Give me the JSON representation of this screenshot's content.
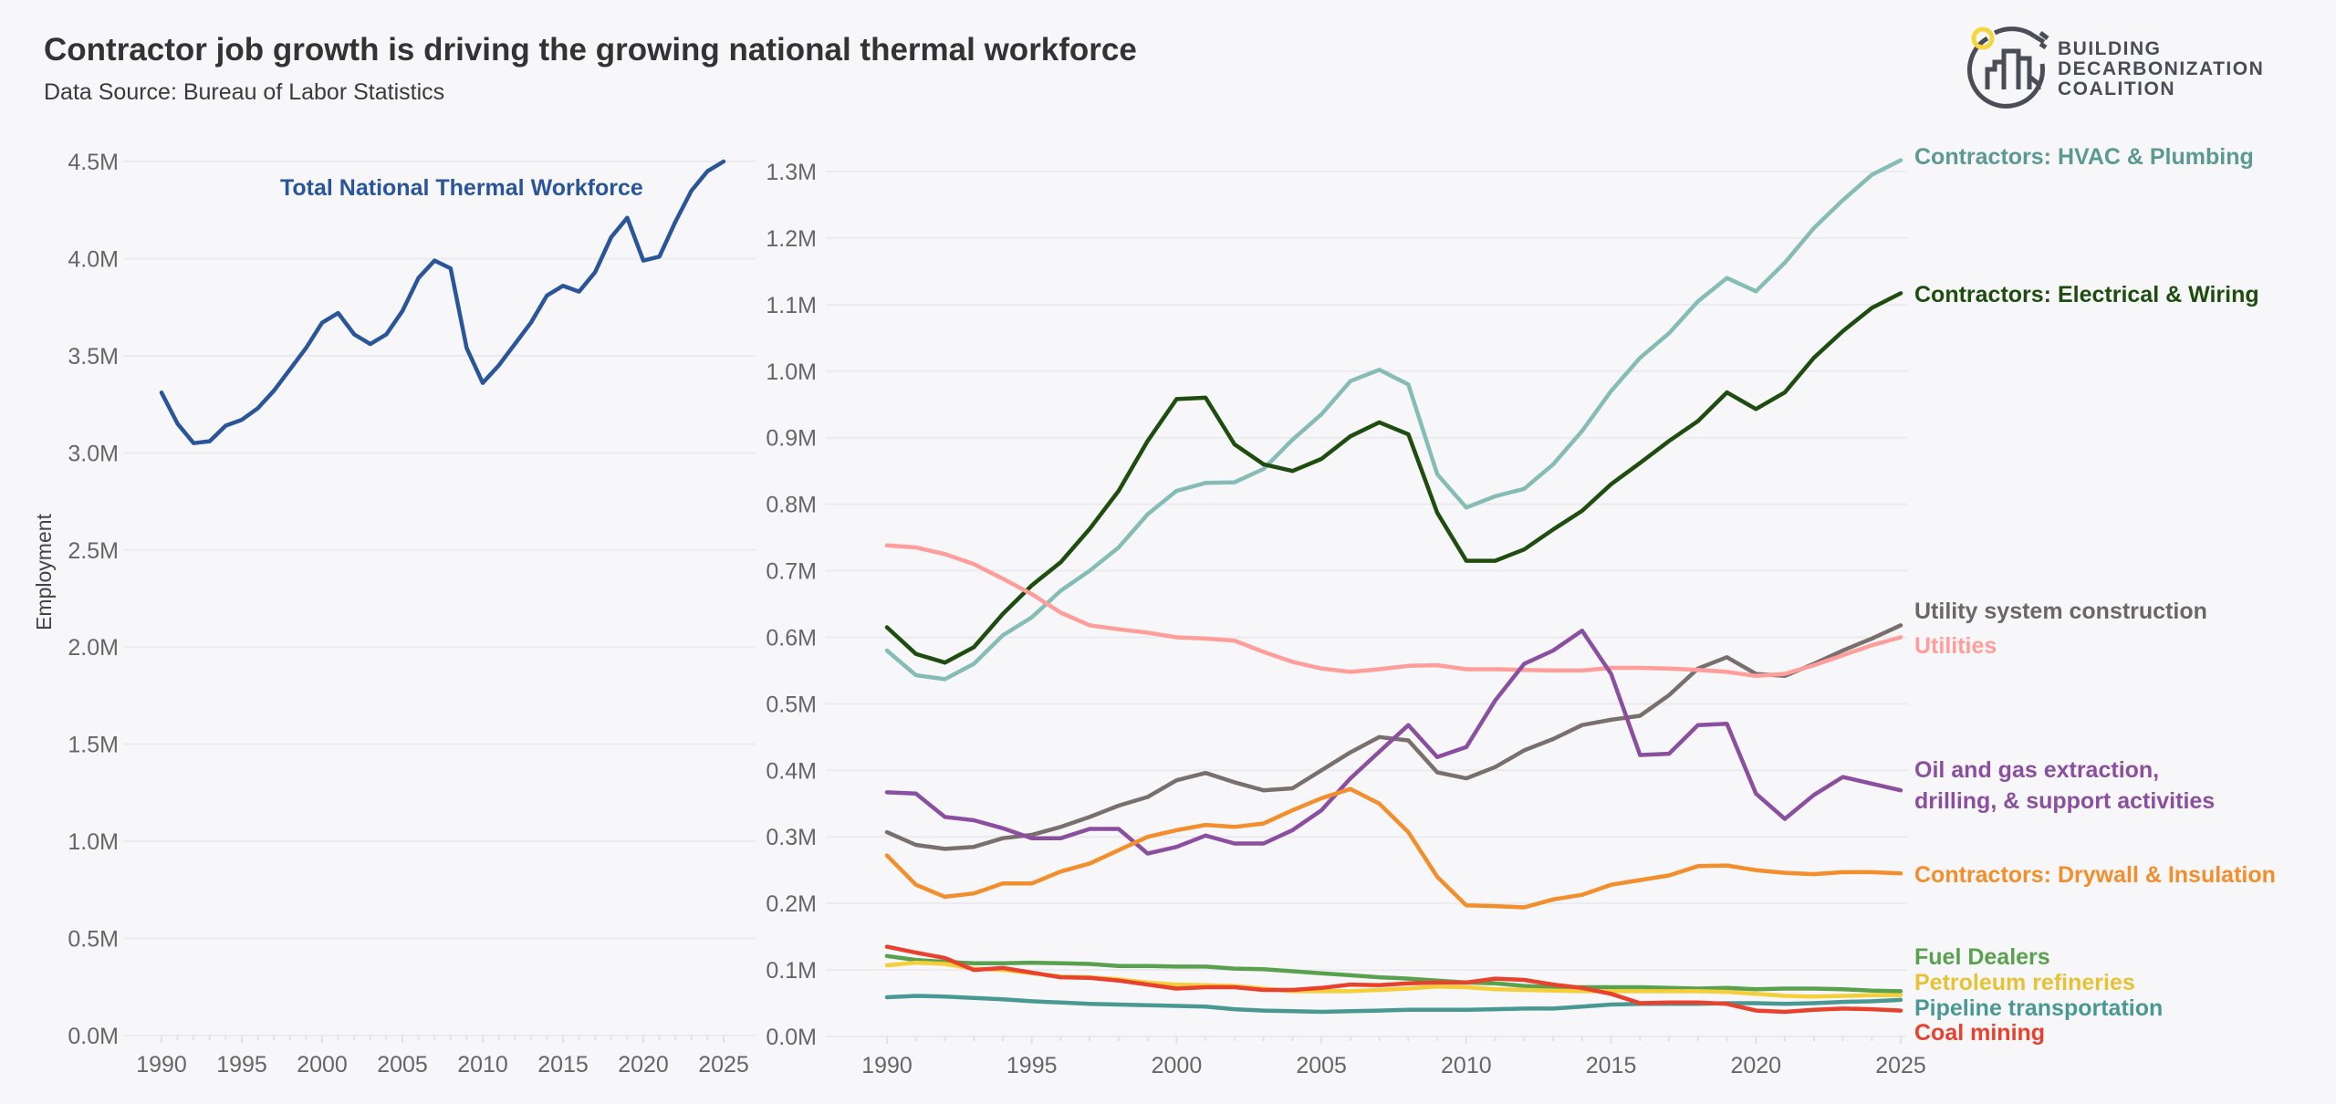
{
  "header": {
    "title": "Contractor job growth is driving the growing national thermal workforce",
    "subtitle": "Data Source: Bureau of Labor Statistics"
  },
  "logo": {
    "lines": [
      "BUILDING",
      "DECARBONIZATION",
      "COALITION"
    ],
    "colors": {
      "text": "#4a4d55",
      "sun": "#f5d63d"
    }
  },
  "chart_data": [
    {
      "type": "line",
      "title": "",
      "xlabel": "",
      "ylabel": "Employment",
      "xlim": [
        1990,
        2025
      ],
      "ylim": [
        0,
        4.5
      ],
      "unit_suffix": "M",
      "grid": true,
      "x_ticks": [
        "1990",
        "1995",
        "2000",
        "2005",
        "2010",
        "2015",
        "2020",
        "2025"
      ],
      "y_ticks": [
        "0.0M",
        "0.5M",
        "1.0M",
        "1.5M",
        "2.0M",
        "2.5M",
        "3.0M",
        "3.5M",
        "4.0M",
        "4.5M"
      ],
      "x": [
        1990,
        1991,
        1992,
        1993,
        1994,
        1995,
        1996,
        1997,
        1998,
        1999,
        2000,
        2001,
        2002,
        2003,
        2004,
        2005,
        2006,
        2007,
        2008,
        2009,
        2010,
        2011,
        2012,
        2013,
        2014,
        2015,
        2016,
        2017,
        2018,
        2019,
        2020,
        2021,
        2022,
        2023,
        2024,
        2025
      ],
      "series": [
        {
          "name": "Total National Thermal Workforce",
          "color": "#2a5599",
          "values": [
            3.31,
            3.15,
            3.05,
            3.06,
            3.14,
            3.17,
            3.23,
            3.32,
            3.43,
            3.54,
            3.67,
            3.72,
            3.61,
            3.56,
            3.61,
            3.73,
            3.9,
            3.99,
            3.95,
            3.54,
            3.36,
            3.45,
            3.56,
            3.67,
            3.81,
            3.86,
            3.83,
            3.93,
            4.11,
            4.21,
            3.99,
            4.01,
            4.19,
            4.35,
            4.45,
            4.5
          ]
        }
      ]
    },
    {
      "type": "line",
      "title": "",
      "xlabel": "",
      "ylabel": "",
      "xlim": [
        1990,
        2025
      ],
      "ylim": [
        0,
        1.3
      ],
      "unit_suffix": "M",
      "grid": true,
      "legend": "direct labels at right",
      "x_ticks": [
        "1990",
        "1995",
        "2000",
        "2005",
        "2010",
        "2015",
        "2020",
        "2025"
      ],
      "y_ticks": [
        "0.0M",
        "0.1M",
        "0.2M",
        "0.3M",
        "0.4M",
        "0.5M",
        "0.6M",
        "0.7M",
        "0.8M",
        "0.9M",
        "1.0M",
        "1.1M",
        "1.2M",
        "1.3M"
      ],
      "x": [
        1990,
        1991,
        1992,
        1993,
        1994,
        1995,
        1996,
        1997,
        1998,
        1999,
        2000,
        2001,
        2002,
        2003,
        2004,
        2005,
        2006,
        2007,
        2008,
        2009,
        2010,
        2011,
        2012,
        2013,
        2014,
        2015,
        2016,
        2017,
        2018,
        2019,
        2020,
        2021,
        2022,
        2023,
        2024,
        2025
      ],
      "series": [
        {
          "name": "Contractors: HVAC & Plumbing",
          "label_lines": [
            "Contractors: HVAC & Plumbing"
          ],
          "color": "#86bcb6",
          "label_color": "#5a9a90",
          "values": [
            0.58,
            0.543,
            0.537,
            0.56,
            0.603,
            0.63,
            0.67,
            0.7,
            0.735,
            0.785,
            0.82,
            0.832,
            0.833,
            0.853,
            0.897,
            0.935,
            0.985,
            1.002,
            0.98,
            0.845,
            0.795,
            0.812,
            0.823,
            0.86,
            0.91,
            0.97,
            1.02,
            1.057,
            1.105,
            1.14,
            1.12,
            1.163,
            1.215,
            1.257,
            1.295,
            1.317
          ]
        },
        {
          "name": "Contractors: Electrical & Wiring",
          "label_lines": [
            "Contractors: Electrical & Wiring"
          ],
          "color": "#1e4d0f",
          "label_color": "#1e4d0f",
          "values": [
            0.615,
            0.575,
            0.562,
            0.585,
            0.635,
            0.678,
            0.713,
            0.763,
            0.82,
            0.895,
            0.958,
            0.96,
            0.89,
            0.86,
            0.85,
            0.868,
            0.902,
            0.923,
            0.905,
            0.787,
            0.715,
            0.715,
            0.732,
            0.762,
            0.79,
            0.83,
            0.862,
            0.895,
            0.925,
            0.968,
            0.943,
            0.968,
            1.02,
            1.06,
            1.095,
            1.117
          ]
        },
        {
          "name": "Utility system construction",
          "label_lines": [
            "Utility system construction"
          ],
          "color": "#79706e",
          "label_color": "#6b6766",
          "values": [
            0.307,
            0.288,
            0.282,
            0.285,
            0.298,
            0.303,
            0.315,
            0.33,
            0.347,
            0.36,
            0.385,
            0.396,
            0.382,
            0.37,
            0.373,
            0.4,
            0.427,
            0.45,
            0.445,
            0.397,
            0.388,
            0.405,
            0.43,
            0.447,
            0.468,
            0.476,
            0.482,
            0.513,
            0.553,
            0.57,
            0.545,
            0.542,
            0.56,
            0.58,
            0.598,
            0.618
          ]
        },
        {
          "name": "Utilities",
          "label_lines": [
            "Utilities"
          ],
          "color": "#ff9d9a",
          "label_color": "#ff9d9a",
          "values": [
            0.738,
            0.735,
            0.725,
            0.71,
            0.688,
            0.665,
            0.637,
            0.618,
            0.612,
            0.607,
            0.6,
            0.598,
            0.595,
            0.578,
            0.563,
            0.553,
            0.548,
            0.552,
            0.557,
            0.558,
            0.552,
            0.552,
            0.551,
            0.55,
            0.55,
            0.554,
            0.554,
            0.553,
            0.551,
            0.548,
            0.542,
            0.545,
            0.558,
            0.573,
            0.588,
            0.6
          ]
        },
        {
          "name": "Oil and gas extraction, drilling, & support activities",
          "label_lines": [
            "Oil and gas extraction,",
            "drilling, & support activities"
          ],
          "color": "#8b4fa0",
          "label_color": "#8b4fa0",
          "values": [
            0.367,
            0.365,
            0.33,
            0.325,
            0.313,
            0.298,
            0.298,
            0.312,
            0.312,
            0.275,
            0.285,
            0.302,
            0.29,
            0.29,
            0.31,
            0.34,
            0.388,
            0.428,
            0.468,
            0.42,
            0.435,
            0.505,
            0.56,
            0.58,
            0.61,
            0.545,
            0.423,
            0.425,
            0.468,
            0.47,
            0.365,
            0.327,
            0.363,
            0.39,
            0.38,
            0.37
          ]
        },
        {
          "name": "Contractors: Drywall & Insulation",
          "label_lines": [
            "Contractors: Drywall & Insulation"
          ],
          "color": "#f28e2b",
          "label_color": "#f28e2b",
          "values": [
            0.272,
            0.228,
            0.21,
            0.215,
            0.23,
            0.23,
            0.248,
            0.26,
            0.28,
            0.3,
            0.31,
            0.318,
            0.315,
            0.32,
            0.34,
            0.358,
            0.372,
            0.35,
            0.307,
            0.24,
            0.197,
            0.196,
            0.194,
            0.206,
            0.213,
            0.228,
            0.235,
            0.242,
            0.256,
            0.257,
            0.25,
            0.246,
            0.244,
            0.247,
            0.247,
            0.245
          ]
        },
        {
          "name": "Fuel Dealers",
          "label_lines": [
            "Fuel Dealers"
          ],
          "color": "#59a14f",
          "label_color": "#59a14f",
          "values": [
            0.121,
            0.115,
            0.112,
            0.11,
            0.11,
            0.111,
            0.11,
            0.109,
            0.106,
            0.106,
            0.105,
            0.105,
            0.102,
            0.101,
            0.098,
            0.095,
            0.092,
            0.089,
            0.087,
            0.084,
            0.081,
            0.08,
            0.076,
            0.074,
            0.074,
            0.074,
            0.074,
            0.073,
            0.072,
            0.073,
            0.071,
            0.072,
            0.072,
            0.071,
            0.069,
            0.068
          ]
        },
        {
          "name": "Petroleum refineries",
          "label_lines": [
            "Petroleum refineries"
          ],
          "color": "#f5cf3a",
          "label_color": "#e8c235",
          "values": [
            0.107,
            0.111,
            0.109,
            0.102,
            0.1,
            0.095,
            0.09,
            0.089,
            0.086,
            0.081,
            0.078,
            0.077,
            0.076,
            0.072,
            0.068,
            0.068,
            0.068,
            0.07,
            0.072,
            0.075,
            0.074,
            0.071,
            0.07,
            0.069,
            0.068,
            0.068,
            0.068,
            0.068,
            0.068,
            0.067,
            0.064,
            0.061,
            0.06,
            0.061,
            0.062,
            0.062
          ]
        },
        {
          "name": "Pipeline transportation",
          "label_lines": [
            "Pipeline transportation"
          ],
          "color": "#499894",
          "label_color": "#499894",
          "values": [
            0.059,
            0.061,
            0.06,
            0.058,
            0.056,
            0.053,
            0.051,
            0.049,
            0.048,
            0.047,
            0.046,
            0.045,
            0.041,
            0.039,
            0.038,
            0.037,
            0.038,
            0.039,
            0.04,
            0.04,
            0.04,
            0.041,
            0.042,
            0.042,
            0.045,
            0.048,
            0.049,
            0.049,
            0.049,
            0.05,
            0.05,
            0.049,
            0.05,
            0.052,
            0.053,
            0.055
          ]
        },
        {
          "name": "Coal mining",
          "label_lines": [
            "Coal mining"
          ],
          "color": "#e8412d",
          "label_color": "#e8412d",
          "values": [
            0.135,
            0.126,
            0.118,
            0.1,
            0.103,
            0.096,
            0.089,
            0.088,
            0.084,
            0.078,
            0.072,
            0.074,
            0.074,
            0.07,
            0.07,
            0.073,
            0.078,
            0.077,
            0.08,
            0.081,
            0.081,
            0.087,
            0.085,
            0.078,
            0.073,
            0.064,
            0.05,
            0.051,
            0.051,
            0.049,
            0.039,
            0.037,
            0.04,
            0.042,
            0.041,
            0.039
          ]
        }
      ]
    }
  ]
}
